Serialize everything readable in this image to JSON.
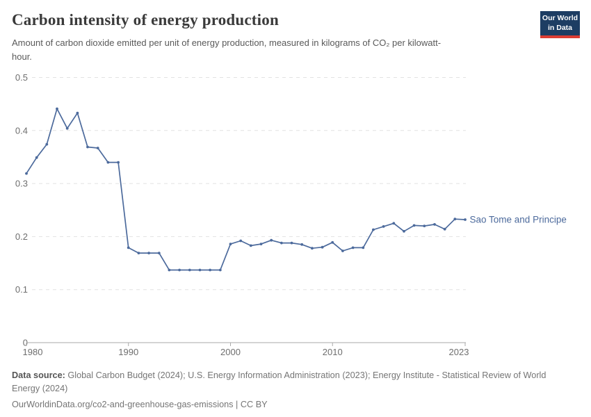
{
  "header": {
    "title": "Carbon intensity of energy production",
    "subtitle": "Amount of carbon dioxide emitted per unit of energy production, measured in kilograms of CO₂ per kilowatt-hour.",
    "logo_line1": "Our World",
    "logo_line2": "in Data"
  },
  "footer": {
    "data_source_label": "Data source:",
    "data_source_text": " Global Carbon Budget (2024); U.S. Energy Information Administration (2023); Energy Institute - Statistical Review of World Energy (2024)",
    "attribution": "OurWorldinData.org/co2-and-greenhouse-gas-emissions | CC BY"
  },
  "colors": {
    "line": "#4c6a9c",
    "series_label": "#4c6a9c",
    "gridline": "#e2e2e2",
    "axis": "#aaaaaa",
    "tick_label": "#6e6e6e",
    "logo_navy": "#1d3d63",
    "logo_red": "#dc3d33"
  },
  "chart_data": {
    "type": "line",
    "title": "Carbon intensity of energy production",
    "xlabel": "",
    "ylabel": "kilograms of CO₂ per kilowatt-hour",
    "x_range": [
      1980,
      2023
    ],
    "ylim": [
      0,
      0.5
    ],
    "y_ticks": [
      0,
      0.1,
      0.2,
      0.3,
      0.4,
      0.5
    ],
    "x_ticks": [
      1980,
      1990,
      2000,
      2010,
      2023
    ],
    "grid": true,
    "legend_position": "end-of-line",
    "x": [
      1980,
      1981,
      1982,
      1983,
      1984,
      1985,
      1986,
      1987,
      1988,
      1989,
      1990,
      1991,
      1992,
      1993,
      1994,
      1995,
      1996,
      1997,
      1998,
      1999,
      2000,
      2001,
      2002,
      2003,
      2004,
      2005,
      2006,
      2007,
      2008,
      2009,
      2010,
      2011,
      2012,
      2013,
      2014,
      2015,
      2016,
      2017,
      2018,
      2019,
      2020,
      2021,
      2022,
      2023
    ],
    "series": [
      {
        "name": "Sao Tome and Principe",
        "values": [
          0.319,
          0.349,
          0.374,
          0.441,
          0.404,
          0.433,
          0.369,
          0.367,
          0.34,
          0.34,
          0.179,
          0.169,
          0.169,
          0.169,
          0.137,
          0.137,
          0.137,
          0.137,
          0.137,
          0.137,
          0.186,
          0.192,
          0.183,
          0.186,
          0.193,
          0.188,
          0.188,
          0.185,
          0.178,
          0.18,
          0.189,
          0.173,
          0.179,
          0.179,
          0.213,
          0.219,
          0.225,
          0.21,
          0.221,
          0.22,
          0.223,
          0.214,
          0.233,
          0.232
        ]
      }
    ]
  }
}
